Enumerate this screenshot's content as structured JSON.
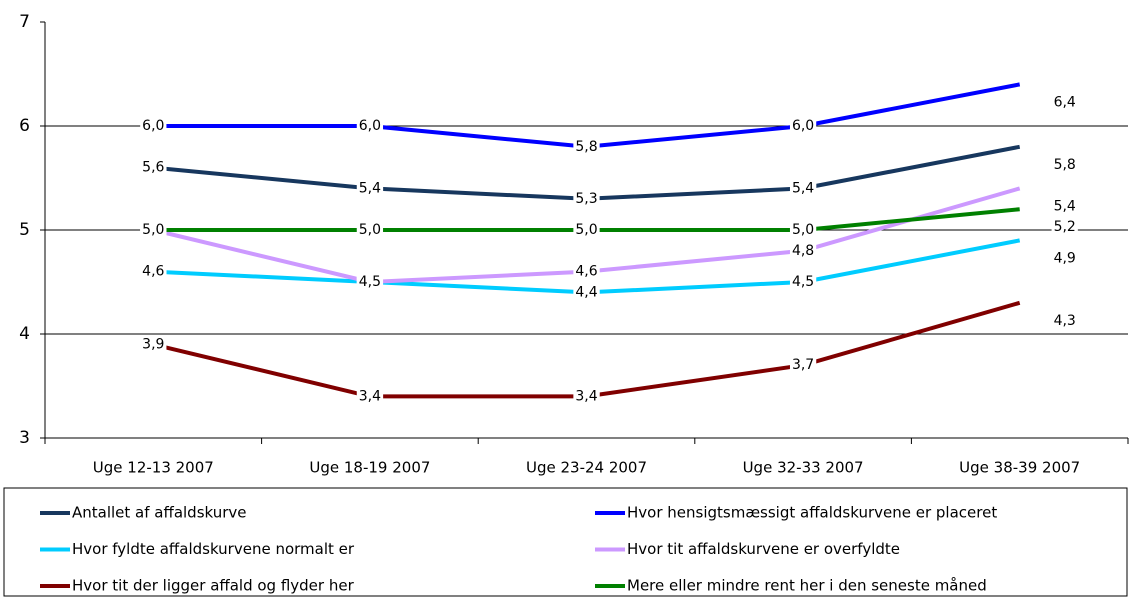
{
  "chart_data": {
    "type": "line",
    "categories": [
      "Uge 12-13 2007",
      "Uge 18-19 2007",
      "Uge 23-24 2007",
      "Uge 32-33 2007",
      "Uge 38-39 2007"
    ],
    "ylim": [
      3,
      7
    ],
    "yticks": [
      3,
      4,
      5,
      6,
      7
    ],
    "grid": true,
    "series": [
      {
        "name": "Antallet af affaldskurve",
        "color": "#17375e",
        "values": [
          5.6,
          5.4,
          5.3,
          5.4,
          5.8
        ],
        "value_labels": [
          "5,6",
          "5,4",
          "5,3",
          "5,4",
          "5,8"
        ]
      },
      {
        "name": "Hvor hensigtsmæssigt affaldskurvene er placeret",
        "color": "#0000ff",
        "values": [
          6.0,
          6.0,
          5.8,
          6.0,
          6.4
        ],
        "value_labels": [
          "6,0",
          "6,0",
          "5,8",
          "6,0",
          "6,4"
        ]
      },
      {
        "name": "Hvor fyldte affaldskurvene normalt er",
        "color": "#00ccff",
        "values": [
          4.6,
          4.5,
          4.4,
          4.5,
          4.9
        ],
        "value_labels": [
          "4,6",
          "4,5",
          "4,4",
          "4,5",
          "4,9"
        ]
      },
      {
        "name": "Hvor tit affaldskurvene er overfyldte",
        "color": "#cc99ff",
        "values": [
          5.0,
          4.5,
          4.6,
          4.8,
          5.4
        ],
        "value_labels": [
          "5,0",
          "4,5",
          "4,6",
          "4,8",
          "5,4"
        ]
      },
      {
        "name": "Hvor tit der ligger affald og flyder her",
        "color": "#800000",
        "values": [
          3.9,
          3.4,
          3.4,
          3.7,
          4.3
        ],
        "value_labels": [
          "3,9",
          "3,4",
          "3,4",
          "3,7",
          "4,3"
        ]
      },
      {
        "name": "Mere eller mindre rent her i den seneste måned",
        "color": "#008000",
        "values": [
          5.0,
          5.0,
          5.0,
          5.0,
          5.2
        ],
        "value_labels": [
          "5,0",
          "5,0",
          "5,0",
          "5,0",
          "5,2"
        ]
      }
    ]
  }
}
